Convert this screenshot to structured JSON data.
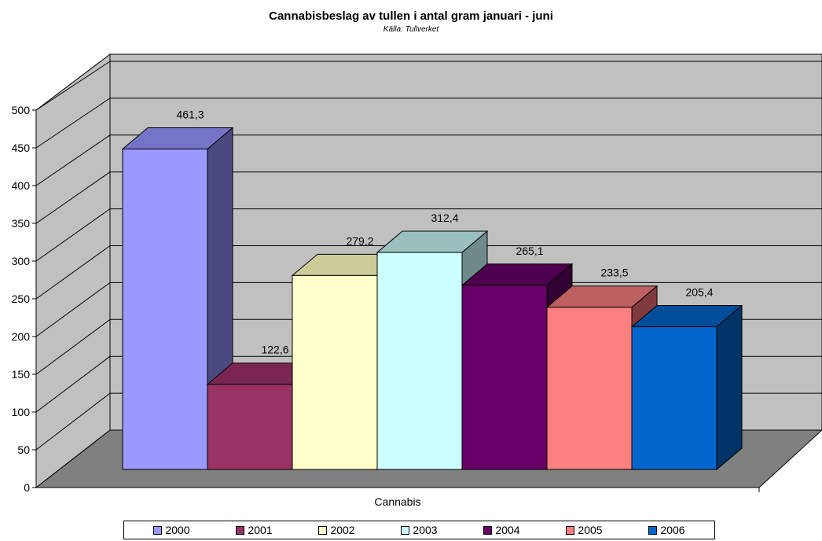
{
  "chart_data": {
    "type": "bar",
    "title": "Cannabisbeslag av tullen i antal gram januari - juni",
    "subtitle": "Källa: Tullverket",
    "xlabel": "Cannabis",
    "ylabel": "",
    "ylim": [
      0,
      500
    ],
    "yticks": [
      0,
      50,
      100,
      150,
      200,
      250,
      300,
      350,
      400,
      450,
      500
    ],
    "categories": [
      "Cannabis"
    ],
    "grid": true,
    "legend_position": "bottom",
    "series": [
      {
        "name": "2000",
        "value": 461.3,
        "label": "461,3",
        "color": "#9999ff",
        "top_color": "#7575c8",
        "side_color": "#4a4a80"
      },
      {
        "name": "2001",
        "value": 122.6,
        "label": "122,6",
        "color": "#993366",
        "top_color": "#7a2650",
        "side_color": "#5c1c3c"
      },
      {
        "name": "2002",
        "value": 279.2,
        "label": "279,2",
        "color": "#ffffcc",
        "top_color": "#cccc99",
        "side_color": "#a0a078"
      },
      {
        "name": "2003",
        "value": 312.4,
        "label": "312,4",
        "color": "#ccffff",
        "top_color": "#99bfbf",
        "side_color": "#6e8a8a"
      },
      {
        "name": "2004",
        "value": 265.1,
        "label": "265,1",
        "color": "#660066",
        "top_color": "#4d004d",
        "side_color": "#330033"
      },
      {
        "name": "2005",
        "value": 233.5,
        "label": "233,5",
        "color": "#ff8080",
        "top_color": "#bf6060",
        "side_color": "#803c3c"
      },
      {
        "name": "2006",
        "value": 205.4,
        "label": "205,4",
        "color": "#0066cc",
        "top_color": "#004d99",
        "side_color": "#003366"
      }
    ]
  }
}
